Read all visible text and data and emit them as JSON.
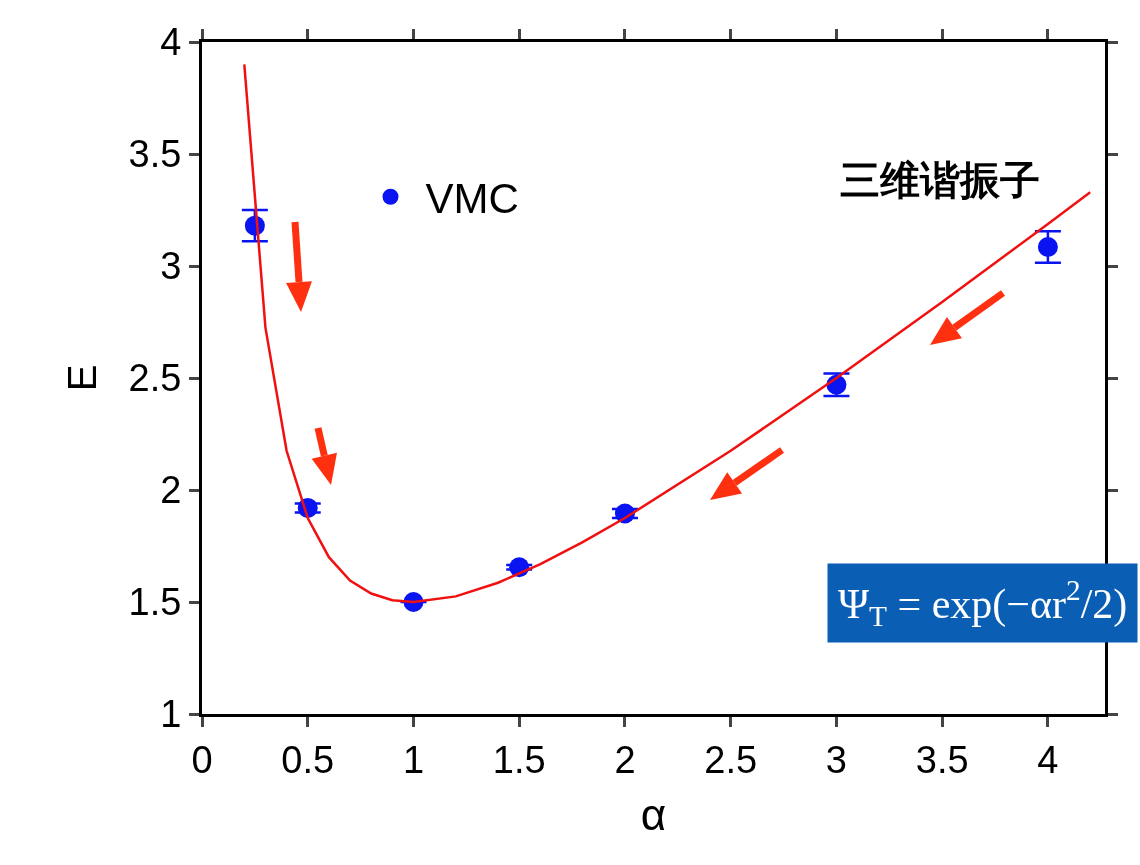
{
  "chart_data": {
    "type": "scatter",
    "xlabel": "α",
    "ylabel": "E",
    "xlim": [
      0,
      4.27
    ],
    "xticks": [
      0,
      0.5,
      1,
      1.5,
      2,
      2.5,
      3,
      3.5,
      4
    ],
    "ylim": [
      1,
      4
    ],
    "yticks": [
      1,
      1.5,
      2,
      2.5,
      3,
      3.5,
      4
    ],
    "grid": false,
    "legend": "top left",
    "annotations": [
      "三维谐振子",
      "Ψ$_{T}$ = exp(−αr$^{2}$/2)"
    ],
    "series": [
      {
        "name": "VMC",
        "marker": "circle",
        "color": "#0a14f0",
        "x": [
          0.25,
          0.5,
          1,
          1.5,
          2,
          3,
          4
        ],
        "values": [
          3.18,
          1.92,
          1.5,
          1.655,
          1.895,
          2.47,
          3.085
        ],
        "errors": [
          0.07,
          0.02,
          null,
          0.01,
          0.02,
          0.05,
          0.07
        ]
      },
      {
        "type": "line",
        "color": "#f01010",
        "line_style": "solid",
        "x": [
          0.2,
          0.3,
          0.4,
          0.5,
          0.6,
          0.7,
          0.8,
          0.9,
          1.0,
          1.2,
          1.4,
          1.6,
          1.8,
          2.0,
          2.5,
          3.0,
          3.5,
          4.0,
          4.2
        ],
        "values": [
          3.9,
          2.725,
          2.175,
          1.875,
          1.7,
          1.596,
          1.538,
          1.508,
          1.5,
          1.525,
          1.586,
          1.669,
          1.767,
          1.875,
          2.175,
          2.5,
          2.839,
          3.188,
          3.329
        ]
      }
    ]
  }
}
